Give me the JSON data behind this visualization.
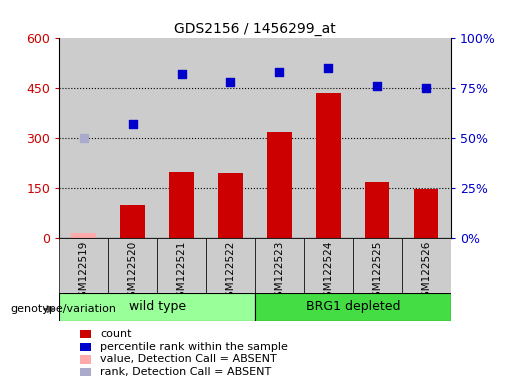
{
  "title": "GDS2156 / 1456299_at",
  "samples": [
    "GSM122519",
    "GSM122520",
    "GSM122521",
    "GSM122522",
    "GSM122523",
    "GSM122524",
    "GSM122525",
    "GSM122526"
  ],
  "count_values": [
    15,
    100,
    200,
    195,
    320,
    435,
    168,
    148
  ],
  "count_absent": [
    true,
    false,
    false,
    false,
    false,
    false,
    false,
    false
  ],
  "rank_values": [
    50,
    57,
    82,
    78,
    83,
    85,
    76,
    75
  ],
  "rank_absent": [
    true,
    false,
    false,
    false,
    false,
    false,
    false,
    false
  ],
  "left_ylim": [
    0,
    600
  ],
  "left_yticks": [
    0,
    150,
    300,
    450,
    600
  ],
  "right_ylim": [
    0,
    100
  ],
  "right_yticks": [
    0,
    25,
    50,
    75,
    100
  ],
  "right_yticklabels": [
    "0%",
    "25%",
    "50%",
    "75%",
    "100%"
  ],
  "bar_color_present": "#cc0000",
  "bar_color_absent": "#ffaaaa",
  "dot_color_present": "#0000cc",
  "dot_color_absent": "#aaaacc",
  "col_bg_color": "#cccccc",
  "wt_color": "#99ff99",
  "brg1_color": "#44dd44",
  "genotype_label": "genotype/variation",
  "wt_label": "wild type",
  "brg1_label": "BRG1 depleted"
}
